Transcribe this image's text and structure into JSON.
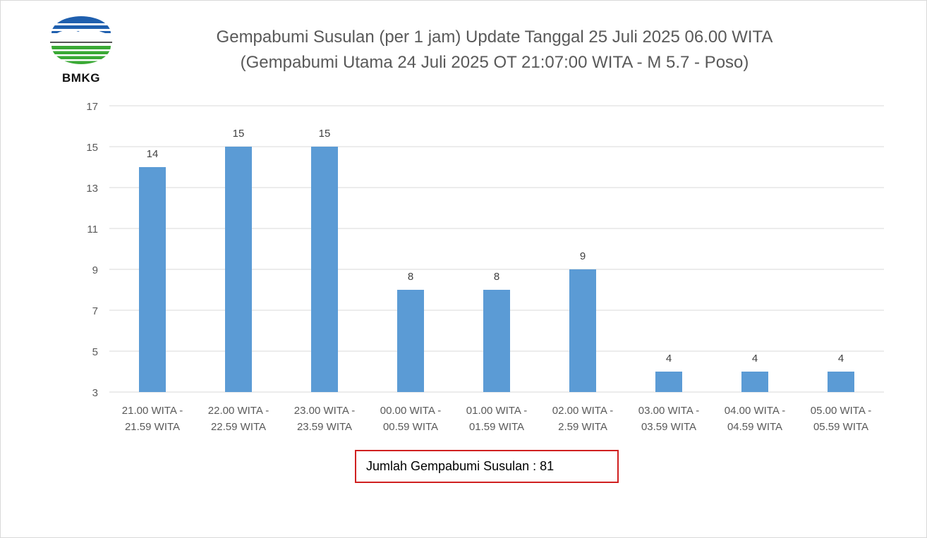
{
  "brand": {
    "logo_text": "BMKG",
    "logo_colors": {
      "blue": "#1f5fae",
      "green": "#3aa935"
    }
  },
  "title_lines": [
    "Gempabumi Susulan (per 1 jam) Update Tanggal 25 Juli 2025 06.00 WITA",
    "(Gempabumi Utama 24 Juli 2025 OT 21:07:00 WITA - M 5.7 - Poso)"
  ],
  "summary": {
    "text": "Jumlah Gempabumi Susulan : 81",
    "border_color": "#d02020"
  },
  "chart_data": {
    "type": "bar",
    "categories": [
      [
        "21.00 WITA -",
        "21.59 WITA"
      ],
      [
        "22.00 WITA -",
        "22.59 WITA"
      ],
      [
        "23.00 WITA -",
        "23.59 WITA"
      ],
      [
        "00.00 WITA -",
        "00.59 WITA"
      ],
      [
        "01.00 WITA -",
        "01.59 WITA"
      ],
      [
        "02.00 WITA -",
        "2.59 WITA"
      ],
      [
        "03.00 WITA -",
        "03.59 WITA"
      ],
      [
        "04.00 WITA -",
        "04.59 WITA"
      ],
      [
        "05.00 WITA -",
        "05.59 WITA"
      ]
    ],
    "values": [
      14,
      15,
      15,
      8,
      8,
      9,
      4,
      4,
      4
    ],
    "data_labels": true,
    "ylim": [
      3,
      17
    ],
    "yticks": [
      3,
      5,
      7,
      9,
      11,
      13,
      15,
      17
    ],
    "grid": true,
    "xlabel": "",
    "ylabel": "",
    "bar_color": "#5b9bd5",
    "grid_color": "#d9d9d9",
    "text_color": "#595959"
  }
}
